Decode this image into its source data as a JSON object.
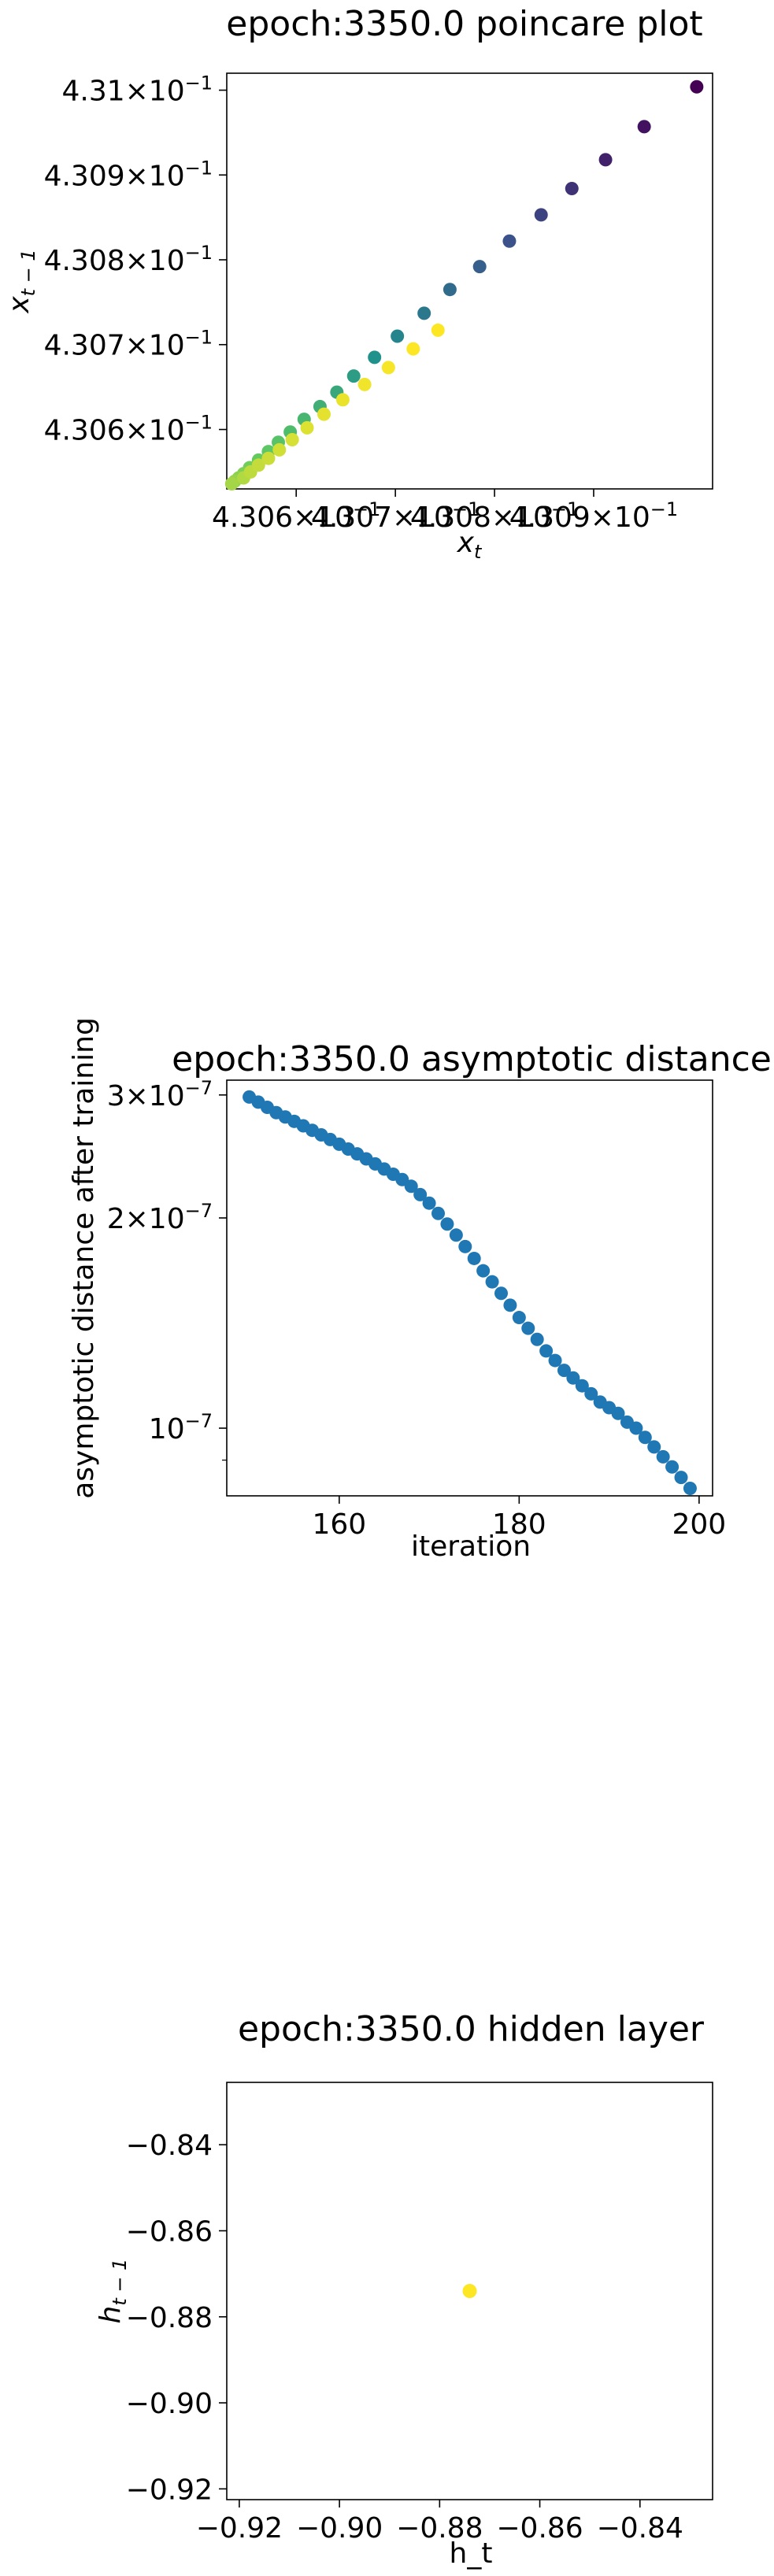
{
  "chart_data": [
    {
      "type": "scatter",
      "title": "epoch:3350.0 poincare plot",
      "xlabel": "x_t",
      "ylabel": "x_{t-1}",
      "scale": "log",
      "xlim": [
        0.43053,
        0.43102
      ],
      "ylim": [
        0.43053,
        0.43102
      ],
      "xticks": [
        {
          "v": 0.4306,
          "m": "4.306",
          "e": "-1"
        },
        {
          "v": 0.4307,
          "m": "4.307",
          "e": "-1"
        },
        {
          "v": 0.4308,
          "m": "4.308",
          "e": "-1"
        },
        {
          "v": 0.4309,
          "m": "4.309",
          "e": "-1"
        }
      ],
      "yticks": [
        {
          "v": 0.4306,
          "m": "4.306",
          "e": "-1"
        },
        {
          "v": 0.4307,
          "m": "4.307",
          "e": "-1"
        },
        {
          "v": 0.4308,
          "m": "4.308",
          "e": "-1"
        },
        {
          "v": 0.4309,
          "m": "4.309",
          "e": "-1"
        },
        {
          "v": 0.431,
          "m": "4.31",
          "e": "-1"
        }
      ],
      "colormap": "viridis",
      "points": [
        {
          "x": 0.431004,
          "y": 0.431004,
          "c": 0.0
        },
        {
          "x": 0.430951,
          "y": 0.430957,
          "c": 0.05
        },
        {
          "x": 0.430912,
          "y": 0.430918,
          "c": 0.1
        },
        {
          "x": 0.430878,
          "y": 0.430884,
          "c": 0.15
        },
        {
          "x": 0.430847,
          "y": 0.430853,
          "c": 0.2
        },
        {
          "x": 0.430815,
          "y": 0.430822,
          "c": 0.25
        },
        {
          "x": 0.430785,
          "y": 0.430792,
          "c": 0.3
        },
        {
          "x": 0.430755,
          "y": 0.430765,
          "c": 0.35
        },
        {
          "x": 0.430729,
          "y": 0.430737,
          "c": 0.4
        },
        {
          "x": 0.430702,
          "y": 0.43071,
          "c": 0.45
        },
        {
          "x": 0.430679,
          "y": 0.430685,
          "c": 0.5
        },
        {
          "x": 0.430658,
          "y": 0.430663,
          "c": 0.55
        },
        {
          "x": 0.430641,
          "y": 0.430644,
          "c": 0.6
        },
        {
          "x": 0.430624,
          "y": 0.430627,
          "c": 0.63
        },
        {
          "x": 0.430608,
          "y": 0.430612,
          "c": 0.66
        },
        {
          "x": 0.430594,
          "y": 0.430597,
          "c": 0.69
        },
        {
          "x": 0.430582,
          "y": 0.430585,
          "c": 0.72
        },
        {
          "x": 0.430572,
          "y": 0.430574,
          "c": 0.74
        },
        {
          "x": 0.430562,
          "y": 0.430564,
          "c": 0.76
        },
        {
          "x": 0.430553,
          "y": 0.430555,
          "c": 0.78
        },
        {
          "x": 0.430547,
          "y": 0.430548,
          "c": 0.8
        },
        {
          "x": 0.430542,
          "y": 0.430543,
          "c": 0.82
        },
        {
          "x": 0.430538,
          "y": 0.430539,
          "c": 0.84
        },
        {
          "x": 0.430535,
          "y": 0.430536,
          "c": 0.86
        },
        {
          "x": 0.430547,
          "y": 0.430543,
          "c": 0.88
        },
        {
          "x": 0.430554,
          "y": 0.43055,
          "c": 0.9
        },
        {
          "x": 0.430562,
          "y": 0.430558,
          "c": 0.91
        },
        {
          "x": 0.430572,
          "y": 0.430566,
          "c": 0.92
        },
        {
          "x": 0.430583,
          "y": 0.430576,
          "c": 0.93
        },
        {
          "x": 0.430596,
          "y": 0.430588,
          "c": 0.94
        },
        {
          "x": 0.430611,
          "y": 0.430602,
          "c": 0.95
        },
        {
          "x": 0.430628,
          "y": 0.430618,
          "c": 0.96
        },
        {
          "x": 0.430647,
          "y": 0.430635,
          "c": 0.97
        },
        {
          "x": 0.430669,
          "y": 0.430653,
          "c": 0.98
        },
        {
          "x": 0.430693,
          "y": 0.430673,
          "c": 0.99
        },
        {
          "x": 0.430718,
          "y": 0.430695,
          "c": 1.0
        },
        {
          "x": 0.430743,
          "y": 0.430717,
          "c": 1.0
        }
      ]
    },
    {
      "type": "scatter",
      "title": "epoch:3350.0 asymptotic distance",
      "xlabel": "iteration",
      "ylabel": "asymptotic distance after training",
      "yscale": "log",
      "xlim": [
        147.5,
        201.5
      ],
      "ylim": [
        8e-08,
        3.15e-07
      ],
      "xticks": [
        160,
        180,
        200
      ],
      "yticks": [
        {
          "v": 3e-07,
          "m": "3",
          "e": "-7"
        },
        {
          "v": 2e-07,
          "m": "2",
          "e": "-7"
        },
        {
          "v": 1e-07,
          "m": "10",
          "e": "-7"
        }
      ],
      "color": "#1f77b4",
      "x": [
        150,
        151,
        152,
        153,
        154,
        155,
        156,
        157,
        158,
        159,
        160,
        161,
        162,
        163,
        164,
        165,
        166,
        167,
        168,
        169,
        170,
        171,
        172,
        173,
        174,
        175,
        176,
        177,
        178,
        179,
        180,
        181,
        182,
        183,
        184,
        185,
        186,
        187,
        188,
        189,
        190,
        191,
        192,
        193,
        194,
        195,
        196,
        197,
        198,
        199
      ],
      "y": [
        2.98e-07,
        2.93e-07,
        2.88e-07,
        2.83e-07,
        2.79e-07,
        2.75e-07,
        2.71e-07,
        2.67e-07,
        2.63e-07,
        2.59e-07,
        2.55e-07,
        2.51e-07,
        2.47e-07,
        2.43e-07,
        2.39e-07,
        2.35e-07,
        2.31e-07,
        2.27e-07,
        2.22e-07,
        2.16e-07,
        2.1e-07,
        2.03e-07,
        1.96e-07,
        1.89e-07,
        1.82e-07,
        1.75e-07,
        1.68e-07,
        1.62e-07,
        1.56e-07,
        1.5e-07,
        1.44e-07,
        1.39e-07,
        1.34e-07,
        1.29e-07,
        1.25e-07,
        1.21e-07,
        1.18e-07,
        1.15e-07,
        1.12e-07,
        1.09e-07,
        1.07e-07,
        1.05e-07,
        1.02e-07,
        1e-07,
        9.7e-08,
        9.4e-08,
        9.1e-08,
        8.8e-08,
        8.5e-08,
        8.2e-08
      ]
    },
    {
      "type": "scatter",
      "title": "epoch:3350.0 hidden layer",
      "xlabel": "h_t",
      "ylabel": "h_{t-1}",
      "xlim": [
        -0.9225,
        -0.8255
      ],
      "ylim": [
        -0.9225,
        -0.8255
      ],
      "xticks": [
        -0.92,
        -0.9,
        -0.88,
        -0.86,
        -0.84
      ],
      "yticks": [
        -0.84,
        -0.86,
        -0.88,
        -0.9,
        -0.92
      ],
      "tick_labels": [
        "−0.92",
        "−0.90",
        "−0.88",
        "−0.86",
        "−0.84"
      ],
      "color": "#fde725",
      "points": [
        {
          "x": -0.874,
          "y": -0.874
        }
      ]
    }
  ]
}
